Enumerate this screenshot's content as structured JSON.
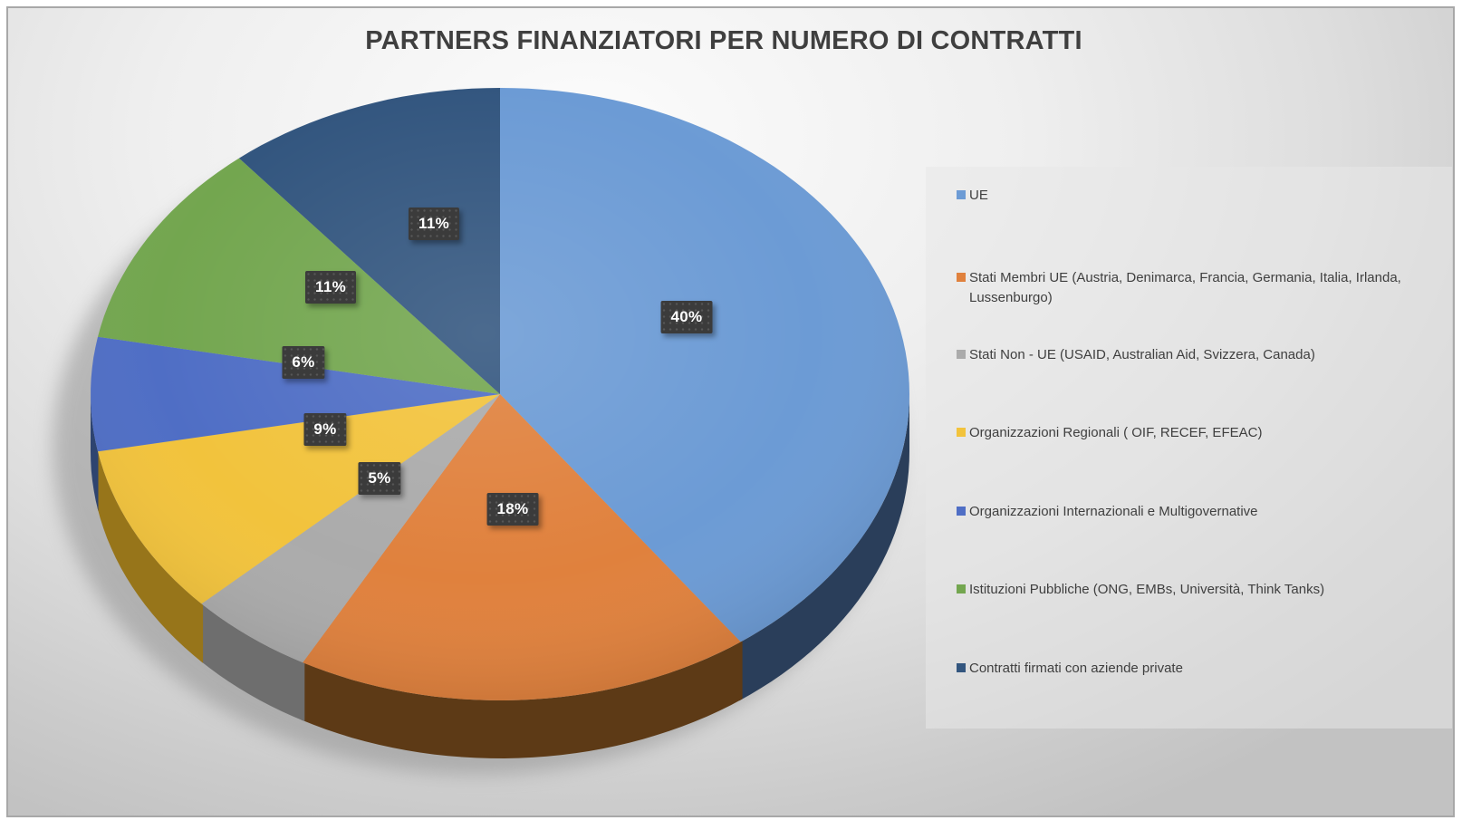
{
  "title": "PARTNERS FINANZIATORI PER NUMERO DI CONTRATTI",
  "colors": {
    "title_text": "#3f3f3f",
    "legend_text": "#3f3f3f",
    "label_box": "#3b3b3b",
    "label_text": "#ffffff",
    "frame_border": "#a8a8a8",
    "background_light": "#fcfcfc",
    "background_dark": "#c2c2c2"
  },
  "chart_data": {
    "type": "pie",
    "title": "PARTNERS FINANZIATORI PER NUMERO DI CONTRATTI",
    "style": "3d-pie",
    "legend_position": "right",
    "start_angle_deg": 0,
    "direction": "clockwise",
    "values_unit": "percent",
    "slices": [
      {
        "label": "UE",
        "value": 40,
        "pct_label": "40%",
        "color": "#6c9bd5",
        "side_color": "#2a3e5a"
      },
      {
        "label": "Stati Membri UE (Austria, Denimarca, Francia, Germania, Italia, Irlanda, Lussenburgo)",
        "value": 18,
        "pct_label": "18%",
        "color": "#e0813d",
        "side_color": "#5d3a16"
      },
      {
        "label": "Stati Non - UE  (USAID, Australian Aid, Svizzera, Canada)",
        "value": 5,
        "pct_label": "5%",
        "color": "#ababab",
        "side_color": "#6e6e6e"
      },
      {
        "label": "Organizzazioni Regionali  ( OIF, RECEF, EFEAC)",
        "value": 9,
        "pct_label": "9%",
        "color": "#f2c33c",
        "side_color": "#97751a"
      },
      {
        "label": "Organizzazioni Internazionali e Multigovernative",
        "value": 6,
        "pct_label": "6%",
        "color": "#4f6ec5",
        "side_color": "#2e4470"
      },
      {
        "label": "Istituzioni Pubbliche  (ONG, EMBs, Università, Think Tanks)",
        "value": 11,
        "pct_label": "11%",
        "color": "#73a64f",
        "side_color": "#44682b"
      },
      {
        "label": "Contratti firmati con aziende private",
        "value": 11,
        "pct_label": "11%",
        "color": "#33567f",
        "side_color": "#1f3350"
      }
    ]
  }
}
